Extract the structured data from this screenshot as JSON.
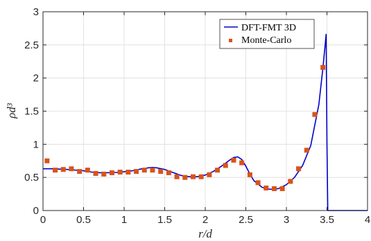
{
  "chart_data": {
    "type": "line",
    "xlabel": "r/d",
    "ylabel": "ρd³",
    "xlim": [
      0,
      4
    ],
    "ylim": [
      0,
      3
    ],
    "xticks": [
      0,
      0.5,
      1,
      1.5,
      2,
      2.5,
      3,
      3.5,
      4
    ],
    "yticks": [
      0,
      0.5,
      1,
      1.5,
      2,
      2.5,
      3
    ],
    "xtick_labels": [
      "0",
      "0.5",
      "1",
      "1.5",
      "2",
      "2.5",
      "3",
      "3.5",
      "4"
    ],
    "ytick_labels": [
      "0",
      "0.5",
      "1",
      "1.5",
      "2",
      "2.5",
      "3"
    ],
    "grid": true,
    "legend_position": "top-right",
    "series": [
      {
        "name": "DFT-FMT 3D",
        "kind": "line",
        "color": "#0000cc",
        "x": [
          0.0,
          0.1,
          0.2,
          0.3,
          0.4,
          0.5,
          0.6,
          0.7,
          0.8,
          0.9,
          1.0,
          1.1,
          1.2,
          1.3,
          1.35,
          1.4,
          1.5,
          1.6,
          1.7,
          1.8,
          1.9,
          2.0,
          2.1,
          2.2,
          2.3,
          2.35,
          2.4,
          2.45,
          2.5,
          2.55,
          2.6,
          2.7,
          2.8,
          2.9,
          3.0,
          3.1,
          3.2,
          3.3,
          3.4,
          3.45,
          3.49,
          3.5,
          3.51,
          4.0
        ],
        "y": [
          0.63,
          0.63,
          0.625,
          0.62,
          0.61,
          0.6,
          0.58,
          0.57,
          0.57,
          0.575,
          0.585,
          0.6,
          0.625,
          0.645,
          0.65,
          0.645,
          0.62,
          0.575,
          0.53,
          0.51,
          0.51,
          0.535,
          0.59,
          0.67,
          0.76,
          0.8,
          0.81,
          0.77,
          0.67,
          0.55,
          0.45,
          0.35,
          0.32,
          0.33,
          0.39,
          0.5,
          0.68,
          0.98,
          1.6,
          2.15,
          2.66,
          1.0,
          0.0,
          0.0
        ]
      },
      {
        "name": "Monte-Carlo",
        "kind": "scatter",
        "color": "#d95319",
        "x": [
          0.05,
          0.15,
          0.25,
          0.35,
          0.45,
          0.55,
          0.65,
          0.75,
          0.85,
          0.95,
          1.05,
          1.15,
          1.25,
          1.35,
          1.45,
          1.55,
          1.65,
          1.75,
          1.85,
          1.95,
          2.05,
          2.15,
          2.25,
          2.35,
          2.45,
          2.55,
          2.65,
          2.75,
          2.85,
          2.95,
          3.05,
          3.15,
          3.25,
          3.35,
          3.45
        ],
        "y": [
          0.75,
          0.61,
          0.62,
          0.63,
          0.59,
          0.61,
          0.56,
          0.55,
          0.57,
          0.58,
          0.58,
          0.59,
          0.61,
          0.61,
          0.59,
          0.57,
          0.51,
          0.5,
          0.51,
          0.51,
          0.54,
          0.61,
          0.68,
          0.76,
          0.72,
          0.54,
          0.42,
          0.34,
          0.33,
          0.33,
          0.44,
          0.63,
          0.91,
          1.45,
          2.16
        ]
      }
    ]
  }
}
